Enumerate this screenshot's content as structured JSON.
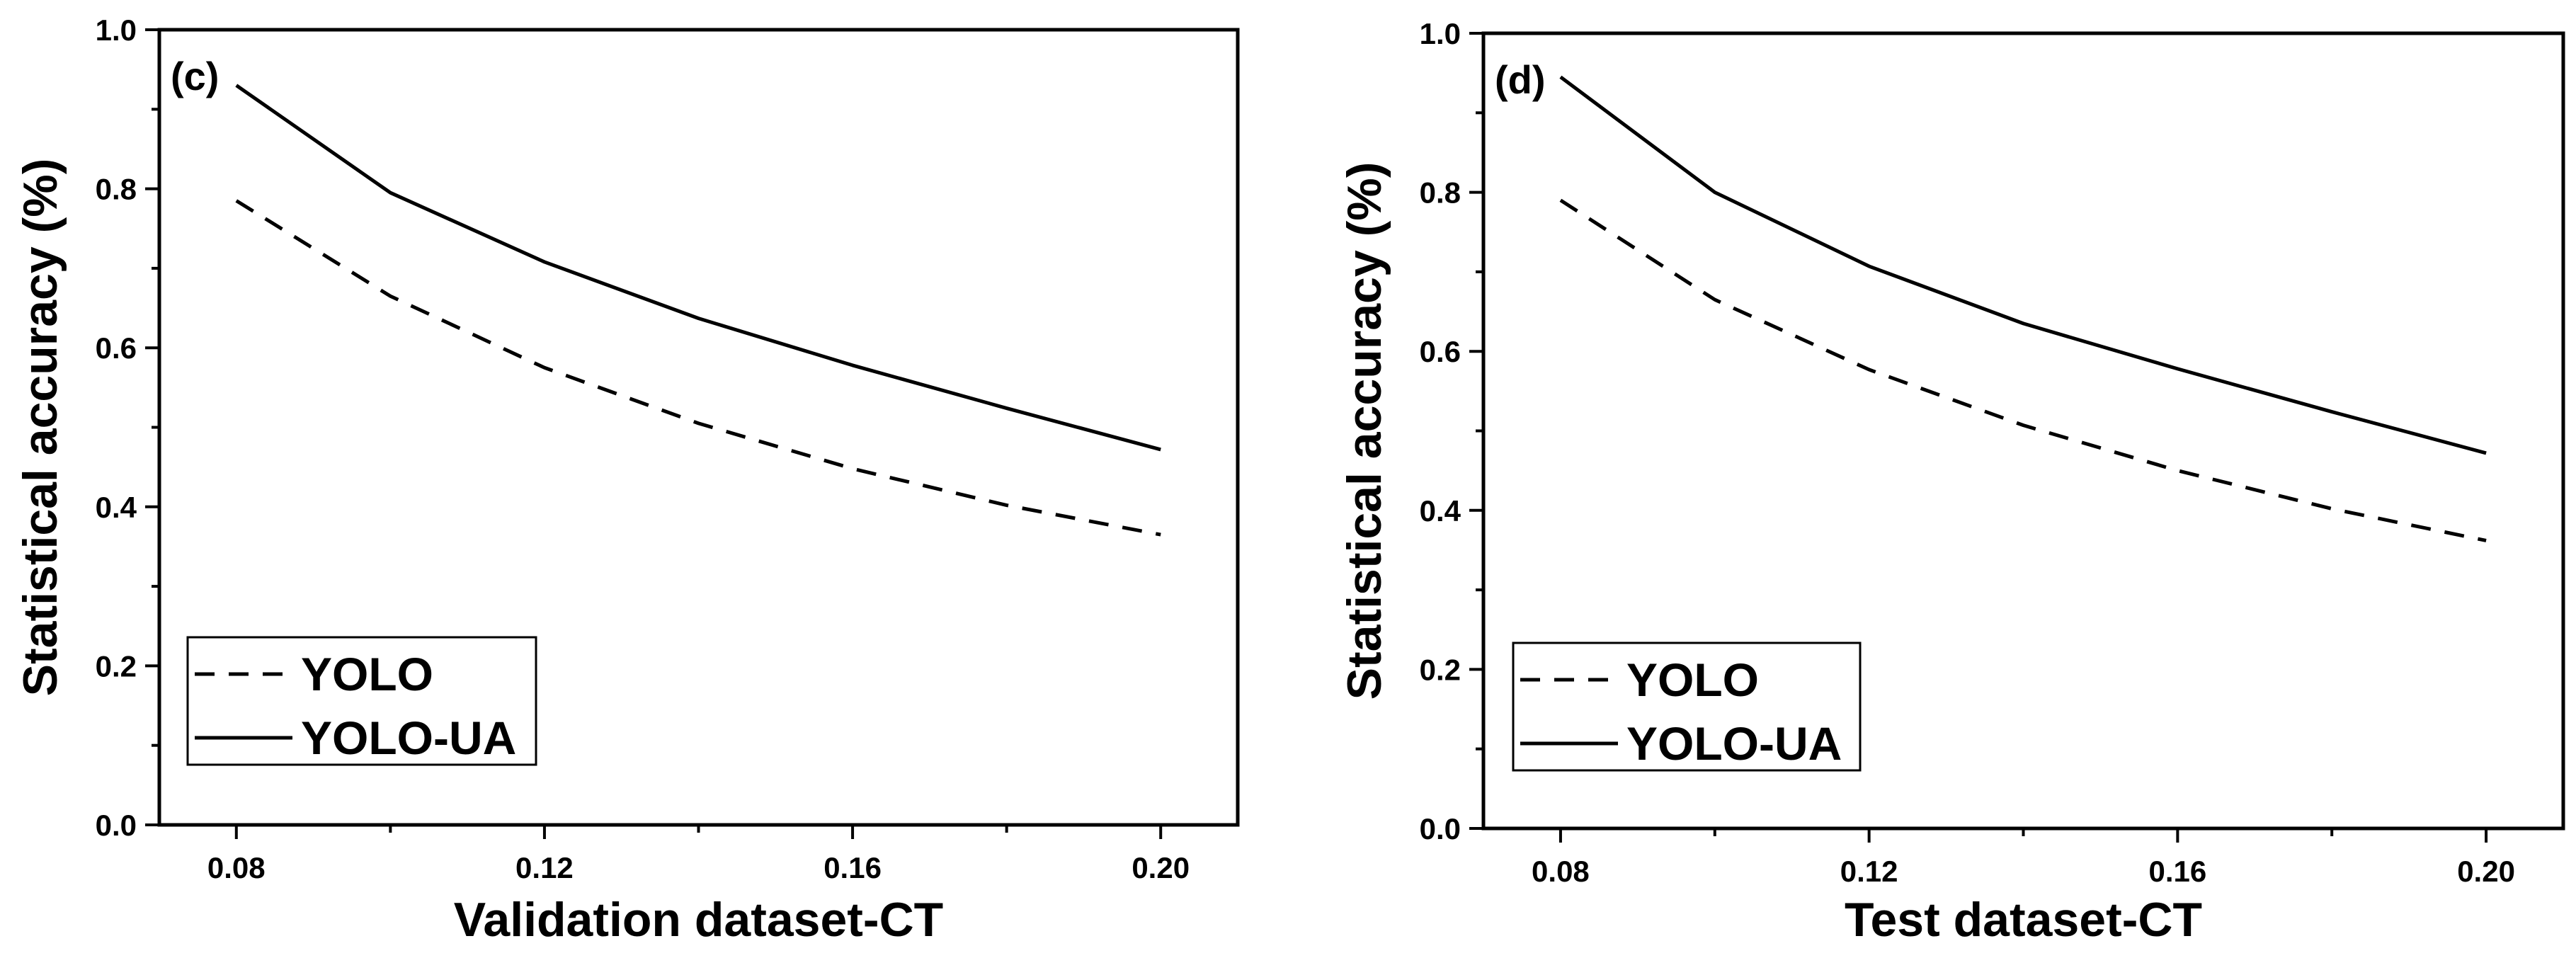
{
  "chart_data": [
    {
      "type": "line",
      "panel_label": "(c)",
      "xlabel": "Validation dataset-CT",
      "ylabel": "Statistical accuracy (%)",
      "xlim": [
        0.07,
        0.21
      ],
      "ylim": [
        0.0,
        1.0
      ],
      "xticks": [
        0.08,
        0.12,
        0.16,
        0.2
      ],
      "xtick_labels": [
        "0.08",
        "0.12",
        "0.16",
        "0.20"
      ],
      "yticks": [
        0.0,
        0.2,
        0.4,
        0.6,
        0.8,
        1.0
      ],
      "ytick_labels": [
        "0.0",
        "0.2",
        "0.4",
        "0.6",
        "0.8",
        "1.0"
      ],
      "x": [
        0.08,
        0.1,
        0.12,
        0.14,
        0.16,
        0.18,
        0.2
      ],
      "series": [
        {
          "name": "YOLO",
          "style": "dashed",
          "values": [
            0.785,
            0.665,
            0.575,
            0.505,
            0.448,
            0.402,
            0.365
          ]
        },
        {
          "name": "YOLO-UA",
          "style": "solid",
          "values": [
            0.93,
            0.795,
            0.708,
            0.637,
            0.578,
            0.524,
            0.472
          ]
        }
      ],
      "legend": {
        "position": "bottom-left",
        "entries": [
          "YOLO",
          "YOLO-UA"
        ]
      },
      "grid": false
    },
    {
      "type": "line",
      "panel_label": "(d)",
      "xlabel": "Test dataset-CT",
      "ylabel": "Statistical accuracy (%)",
      "xlim": [
        0.07,
        0.21
      ],
      "ylim": [
        0.0,
        1.0
      ],
      "xticks": [
        0.08,
        0.12,
        0.16,
        0.2
      ],
      "xtick_labels": [
        "0.08",
        "0.12",
        "0.16",
        "0.20"
      ],
      "yticks": [
        0.0,
        0.2,
        0.4,
        0.6,
        0.8,
        1.0
      ],
      "ytick_labels": [
        "0.0",
        "0.2",
        "0.4",
        "0.6",
        "0.8",
        "1.0"
      ],
      "x": [
        0.08,
        0.1,
        0.12,
        0.14,
        0.16,
        0.18,
        0.2
      ],
      "series": [
        {
          "name": "YOLO",
          "style": "dashed",
          "values": [
            0.79,
            0.665,
            0.577,
            0.507,
            0.45,
            0.402,
            0.362
          ]
        },
        {
          "name": "YOLO-UA",
          "style": "solid",
          "values": [
            0.945,
            0.8,
            0.707,
            0.635,
            0.578,
            0.524,
            0.472
          ]
        }
      ],
      "legend": {
        "position": "bottom-left",
        "entries": [
          "YOLO",
          "YOLO-UA"
        ]
      },
      "grid": false
    }
  ]
}
